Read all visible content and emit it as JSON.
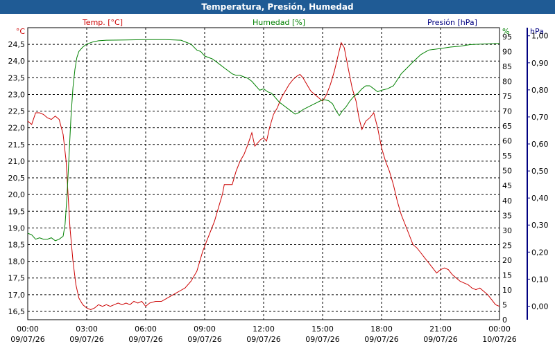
{
  "window": {
    "title": "Temperatura, Presión, Humedad"
  },
  "colors": {
    "title_bar": "#1f5b95",
    "temp": "#cc0000",
    "humidity": "#008000",
    "pressure": "#000080",
    "grid": "#000000",
    "right_axis_bar": "#000080"
  },
  "chart_data": {
    "type": "line",
    "title": "Temperatura, Presión, Humedad",
    "grid": true,
    "x_tick_labels": [
      [
        "00:00",
        "09/07/26"
      ],
      [
        "03:00",
        "09/07/26"
      ],
      [
        "06:00",
        "09/07/26"
      ],
      [
        "09:00",
        "09/07/26"
      ],
      [
        "12:00",
        "09/07/26"
      ],
      [
        "15:00",
        "09/07/26"
      ],
      [
        "18:00",
        "09/07/26"
      ],
      [
        "21:00",
        "09/07/26"
      ],
      [
        "00:00",
        "10/07/26"
      ]
    ],
    "x_range_hours": [
      0,
      24
    ],
    "axes": {
      "temp": {
        "unit": "°C",
        "label": "Temp. [°C]",
        "range": [
          16.25,
          25.0
        ],
        "ticks": [
          "16,5",
          "17,0",
          "17,5",
          "18,0",
          "18,5",
          "19,0",
          "19,5",
          "20,0",
          "20,5",
          "21,0",
          "21,5",
          "22,0",
          "22,5",
          "23,0",
          "23,5",
          "24,0",
          "24,5"
        ]
      },
      "humidity": {
        "unit": "%",
        "label": "Humedad [%]",
        "range": [
          0,
          98
        ],
        "ticks": [
          "0",
          "5",
          "10",
          "15",
          "20",
          "25",
          "30",
          "35",
          "40",
          "45",
          "50",
          "55",
          "60",
          "65",
          "70",
          "75",
          "80",
          "85",
          "90",
          "95"
        ]
      },
      "pressure": {
        "unit": "hPa",
        "label": "Presión [hPa]",
        "range": [
          -0.05,
          1.03
        ],
        "ticks": [
          "0,00",
          "0,10",
          "0,20",
          "0,30",
          "0,40",
          "0,50",
          "0,60",
          "0,70",
          "0,80",
          "0,90",
          "1,00"
        ]
      }
    },
    "series": [
      {
        "name": "Temp. [°C]",
        "axis": "temp",
        "points": [
          [
            0.0,
            22.2
          ],
          [
            0.2,
            22.1
          ],
          [
            0.4,
            22.45
          ],
          [
            0.6,
            22.45
          ],
          [
            0.8,
            22.4
          ],
          [
            1.0,
            22.3
          ],
          [
            1.2,
            22.25
          ],
          [
            1.4,
            22.35
          ],
          [
            1.6,
            22.25
          ],
          [
            1.8,
            21.8
          ],
          [
            1.95,
            21.0
          ],
          [
            2.05,
            20.0
          ],
          [
            2.15,
            19.0
          ],
          [
            2.3,
            18.0
          ],
          [
            2.45,
            17.3
          ],
          [
            2.6,
            16.9
          ],
          [
            2.8,
            16.7
          ],
          [
            3.0,
            16.6
          ],
          [
            3.2,
            16.55
          ],
          [
            3.4,
            16.6
          ],
          [
            3.6,
            16.7
          ],
          [
            3.8,
            16.65
          ],
          [
            4.0,
            16.7
          ],
          [
            4.2,
            16.65
          ],
          [
            4.4,
            16.7
          ],
          [
            4.6,
            16.75
          ],
          [
            4.8,
            16.7
          ],
          [
            5.0,
            16.75
          ],
          [
            5.2,
            16.7
          ],
          [
            5.4,
            16.8
          ],
          [
            5.6,
            16.75
          ],
          [
            5.8,
            16.8
          ],
          [
            6.0,
            16.65
          ],
          [
            6.2,
            16.75
          ],
          [
            6.5,
            16.8
          ],
          [
            6.8,
            16.8
          ],
          [
            7.1,
            16.9
          ],
          [
            7.4,
            17.0
          ],
          [
            7.7,
            17.1
          ],
          [
            8.0,
            17.2
          ],
          [
            8.3,
            17.4
          ],
          [
            8.6,
            17.7
          ],
          [
            8.9,
            18.3
          ],
          [
            9.1,
            18.6
          ],
          [
            9.3,
            18.9
          ],
          [
            9.5,
            19.2
          ],
          [
            9.7,
            19.6
          ],
          [
            9.9,
            20.0
          ],
          [
            10.0,
            20.3
          ],
          [
            10.2,
            20.3
          ],
          [
            10.4,
            20.3
          ],
          [
            10.6,
            20.7
          ],
          [
            10.8,
            21.0
          ],
          [
            11.0,
            21.2
          ],
          [
            11.2,
            21.5
          ],
          [
            11.4,
            21.85
          ],
          [
            11.55,
            21.45
          ],
          [
            11.7,
            21.55
          ],
          [
            11.85,
            21.65
          ],
          [
            12.0,
            21.7
          ],
          [
            12.15,
            21.6
          ],
          [
            12.3,
            22.0
          ],
          [
            12.5,
            22.4
          ],
          [
            12.7,
            22.6
          ],
          [
            12.9,
            22.9
          ],
          [
            13.1,
            23.1
          ],
          [
            13.3,
            23.3
          ],
          [
            13.5,
            23.45
          ],
          [
            13.7,
            23.55
          ],
          [
            13.85,
            23.6
          ],
          [
            14.0,
            23.5
          ],
          [
            14.2,
            23.3
          ],
          [
            14.4,
            23.1
          ],
          [
            14.6,
            23.0
          ],
          [
            14.8,
            22.9
          ],
          [
            15.0,
            22.8
          ],
          [
            15.2,
            23.0
          ],
          [
            15.4,
            23.3
          ],
          [
            15.6,
            23.7
          ],
          [
            15.8,
            24.2
          ],
          [
            15.95,
            24.55
          ],
          [
            16.1,
            24.4
          ],
          [
            16.3,
            23.8
          ],
          [
            16.5,
            23.2
          ],
          [
            16.7,
            22.8
          ],
          [
            16.85,
            22.3
          ],
          [
            17.0,
            21.95
          ],
          [
            17.2,
            22.2
          ],
          [
            17.4,
            22.3
          ],
          [
            17.6,
            22.45
          ],
          [
            17.8,
            22.0
          ],
          [
            18.0,
            21.4
          ],
          [
            18.2,
            21.0
          ],
          [
            18.4,
            20.7
          ],
          [
            18.6,
            20.3
          ],
          [
            18.8,
            19.8
          ],
          [
            19.0,
            19.4
          ],
          [
            19.2,
            19.1
          ],
          [
            19.4,
            18.8
          ],
          [
            19.6,
            18.5
          ],
          [
            19.8,
            18.4
          ],
          [
            20.0,
            18.25
          ],
          [
            20.2,
            18.1
          ],
          [
            20.4,
            17.95
          ],
          [
            20.6,
            17.8
          ],
          [
            20.8,
            17.65
          ],
          [
            21.0,
            17.75
          ],
          [
            21.2,
            17.8
          ],
          [
            21.4,
            17.75
          ],
          [
            21.6,
            17.6
          ],
          [
            21.8,
            17.5
          ],
          [
            22.0,
            17.4
          ],
          [
            22.2,
            17.35
          ],
          [
            22.4,
            17.3
          ],
          [
            22.6,
            17.2
          ],
          [
            22.8,
            17.15
          ],
          [
            23.0,
            17.2
          ],
          [
            23.2,
            17.1
          ],
          [
            23.4,
            17.0
          ],
          [
            23.6,
            16.85
          ],
          [
            23.8,
            16.7
          ],
          [
            24.0,
            16.65
          ]
        ]
      },
      {
        "name": "Humedad [%]",
        "axis": "humidity",
        "points": [
          [
            0.0,
            29
          ],
          [
            0.2,
            28.5
          ],
          [
            0.4,
            27
          ],
          [
            0.6,
            27.5
          ],
          [
            0.8,
            27
          ],
          [
            1.0,
            27
          ],
          [
            1.2,
            27.5
          ],
          [
            1.4,
            26.5
          ],
          [
            1.6,
            27
          ],
          [
            1.8,
            28
          ],
          [
            1.9,
            32
          ],
          [
            2.0,
            42
          ],
          [
            2.1,
            55
          ],
          [
            2.2,
            68
          ],
          [
            2.3,
            78
          ],
          [
            2.4,
            84
          ],
          [
            2.5,
            88
          ],
          [
            2.6,
            90
          ],
          [
            2.8,
            91.5
          ],
          [
            3.0,
            92.5
          ],
          [
            3.3,
            93.2
          ],
          [
            3.6,
            93.6
          ],
          [
            4.0,
            93.8
          ],
          [
            5.0,
            93.9
          ],
          [
            6.0,
            94.0
          ],
          [
            7.0,
            94.0
          ],
          [
            7.8,
            93.8
          ],
          [
            8.1,
            93.0
          ],
          [
            8.3,
            92.5
          ],
          [
            8.6,
            90.5
          ],
          [
            8.8,
            90.0
          ],
          [
            9.0,
            88.5
          ],
          [
            9.2,
            88.0
          ],
          [
            9.4,
            87.5
          ],
          [
            9.6,
            86.5
          ],
          [
            9.8,
            85.5
          ],
          [
            10.0,
            84.5
          ],
          [
            10.2,
            83.5
          ],
          [
            10.4,
            82.5
          ],
          [
            10.6,
            82.0
          ],
          [
            10.8,
            82.0
          ],
          [
            11.0,
            81.5
          ],
          [
            11.2,
            81.0
          ],
          [
            11.4,
            80.0
          ],
          [
            11.6,
            78.5
          ],
          [
            11.8,
            77.0
          ],
          [
            12.0,
            77.5
          ],
          [
            12.2,
            76.5
          ],
          [
            12.4,
            76.0
          ],
          [
            12.6,
            74.5
          ],
          [
            12.8,
            73.0
          ],
          [
            13.0,
            72.0
          ],
          [
            13.2,
            71.0
          ],
          [
            13.4,
            70.0
          ],
          [
            13.6,
            69.0
          ],
          [
            13.8,
            69.5
          ],
          [
            14.0,
            70.5
          ],
          [
            14.3,
            71.5
          ],
          [
            14.6,
            72.5
          ],
          [
            14.9,
            73.5
          ],
          [
            15.1,
            73.8
          ],
          [
            15.3,
            73.5
          ],
          [
            15.5,
            72.5
          ],
          [
            15.7,
            70.0
          ],
          [
            15.85,
            68.5
          ],
          [
            16.0,
            70.0
          ],
          [
            16.2,
            71.5
          ],
          [
            16.4,
            73.5
          ],
          [
            16.6,
            75.0
          ],
          [
            16.8,
            76.0
          ],
          [
            17.0,
            77.5
          ],
          [
            17.2,
            78.5
          ],
          [
            17.4,
            78.5
          ],
          [
            17.6,
            77.5
          ],
          [
            17.8,
            76.5
          ],
          [
            18.0,
            77.0
          ],
          [
            18.3,
            77.5
          ],
          [
            18.6,
            78.5
          ],
          [
            18.8,
            80.5
          ],
          [
            19.0,
            82.5
          ],
          [
            19.3,
            84.5
          ],
          [
            19.6,
            86.5
          ],
          [
            20.0,
            89.0
          ],
          [
            20.4,
            90.5
          ],
          [
            21.0,
            91.0
          ],
          [
            21.5,
            91.5
          ],
          [
            22.0,
            91.8
          ],
          [
            22.5,
            92.3
          ],
          [
            23.0,
            92.5
          ],
          [
            23.5,
            92.6
          ],
          [
            24.0,
            92.7
          ]
        ]
      },
      {
        "name": "Presión [hPa]",
        "axis": "pressure",
        "points": []
      }
    ]
  }
}
